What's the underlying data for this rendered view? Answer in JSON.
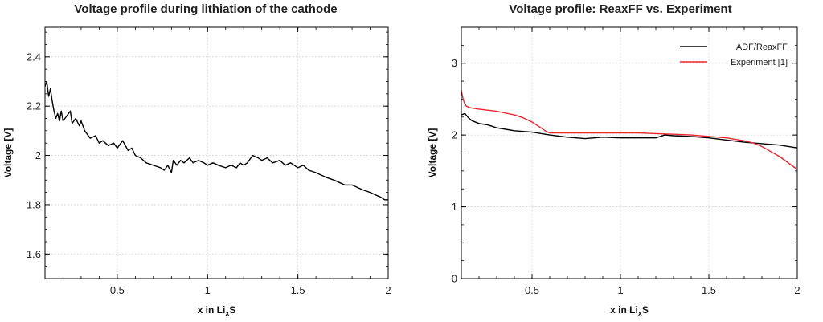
{
  "chart_data": [
    {
      "type": "line",
      "title": "Voltage profile during lithiation of the cathode",
      "xlabel": {
        "prefix": "x in Li",
        "subscript": "x",
        "suffix": "S"
      },
      "ylabel": "Voltage [V]",
      "xlim": [
        0.1,
        2.0
      ],
      "ylim": [
        1.5,
        2.52
      ],
      "xticks": [
        0.5,
        1,
        1.5,
        2
      ],
      "xtick_labels": [
        "0.5",
        "1",
        "1.5",
        "2"
      ],
      "yticks": [
        1.6,
        1.8,
        2.0,
        2.2,
        2.4
      ],
      "ytick_labels": [
        "1.6",
        "1.8",
        "2",
        "2.2",
        "2.4"
      ],
      "grid": true,
      "series": [
        {
          "color": "#000000",
          "x": [
            0.1,
            0.11,
            0.12,
            0.13,
            0.14,
            0.15,
            0.16,
            0.17,
            0.18,
            0.19,
            0.2,
            0.22,
            0.24,
            0.25,
            0.27,
            0.29,
            0.3,
            0.32,
            0.35,
            0.38,
            0.4,
            0.42,
            0.45,
            0.48,
            0.5,
            0.53,
            0.56,
            0.58,
            0.6,
            0.63,
            0.66,
            0.7,
            0.74,
            0.76,
            0.78,
            0.8,
            0.81,
            0.83,
            0.85,
            0.87,
            0.9,
            0.92,
            0.95,
            0.98,
            1.0,
            1.03,
            1.06,
            1.1,
            1.13,
            1.16,
            1.18,
            1.2,
            1.22,
            1.25,
            1.28,
            1.3,
            1.33,
            1.36,
            1.4,
            1.43,
            1.46,
            1.5,
            1.53,
            1.56,
            1.6,
            1.63,
            1.66,
            1.7,
            1.73,
            1.76,
            1.8,
            1.83,
            1.86,
            1.9,
            1.93,
            1.96,
            1.98,
            2.0
          ],
          "y": [
            2.28,
            2.3,
            2.24,
            2.27,
            2.22,
            2.18,
            2.15,
            2.17,
            2.14,
            2.18,
            2.14,
            2.16,
            2.18,
            2.13,
            2.15,
            2.12,
            2.14,
            2.1,
            2.07,
            2.08,
            2.05,
            2.06,
            2.04,
            2.05,
            2.03,
            2.06,
            2.02,
            2.03,
            2.0,
            1.99,
            1.97,
            1.96,
            1.95,
            1.94,
            1.96,
            1.93,
            1.98,
            1.96,
            1.98,
            1.97,
            1.99,
            1.97,
            1.98,
            1.97,
            1.96,
            1.97,
            1.96,
            1.95,
            1.96,
            1.95,
            1.97,
            1.96,
            1.97,
            2.0,
            1.99,
            1.98,
            1.99,
            1.97,
            1.98,
            1.96,
            1.97,
            1.95,
            1.96,
            1.94,
            1.93,
            1.92,
            1.91,
            1.9,
            1.89,
            1.88,
            1.88,
            1.87,
            1.86,
            1.85,
            1.84,
            1.83,
            1.82,
            1.82
          ]
        }
      ]
    },
    {
      "type": "line",
      "title": "Voltage profile: ReaxFF vs. Experiment",
      "xlabel": {
        "prefix": "x in Li",
        "subscript": "x",
        "suffix": "S"
      },
      "ylabel": "Voltage [V]",
      "xlim": [
        0.1,
        2.0
      ],
      "ylim": [
        0,
        3.5
      ],
      "xticks": [
        0.5,
        1,
        1.5,
        2
      ],
      "xtick_labels": [
        "0.5",
        "1",
        "1.5",
        "2"
      ],
      "yticks": [
        0,
        1,
        2,
        3
      ],
      "ytick_labels": [
        "0",
        "1",
        "2",
        "3"
      ],
      "grid": true,
      "legend": "top-right",
      "series": [
        {
          "name": "ADF/ReaxFF",
          "color": "#000000",
          "x": [
            0.1,
            0.12,
            0.14,
            0.16,
            0.2,
            0.25,
            0.3,
            0.4,
            0.5,
            0.6,
            0.7,
            0.8,
            0.9,
            1.0,
            1.1,
            1.2,
            1.25,
            1.3,
            1.4,
            1.5,
            1.6,
            1.7,
            1.8,
            1.9,
            2.0
          ],
          "y": [
            2.28,
            2.3,
            2.24,
            2.2,
            2.16,
            2.14,
            2.1,
            2.06,
            2.04,
            2.0,
            1.97,
            1.95,
            1.97,
            1.96,
            1.96,
            1.96,
            2.0,
            1.99,
            1.98,
            1.96,
            1.93,
            1.9,
            1.88,
            1.86,
            1.82
          ]
        },
        {
          "name": "Experiment [1]",
          "color": "#e8272e",
          "x": [
            0.1,
            0.11,
            0.12,
            0.13,
            0.15,
            0.2,
            0.3,
            0.4,
            0.45,
            0.5,
            0.55,
            0.58,
            0.6,
            0.7,
            0.8,
            0.9,
            1.0,
            1.1,
            1.2,
            1.3,
            1.4,
            1.5,
            1.6,
            1.7,
            1.75,
            1.8,
            1.85,
            1.9,
            1.95,
            2.0
          ],
          "y": [
            2.62,
            2.5,
            2.43,
            2.4,
            2.38,
            2.36,
            2.33,
            2.28,
            2.24,
            2.18,
            2.1,
            2.05,
            2.03,
            2.03,
            2.03,
            2.03,
            2.03,
            2.03,
            2.02,
            2.01,
            2.0,
            1.98,
            1.96,
            1.92,
            1.89,
            1.84,
            1.77,
            1.7,
            1.61,
            1.52
          ]
        }
      ]
    }
  ]
}
